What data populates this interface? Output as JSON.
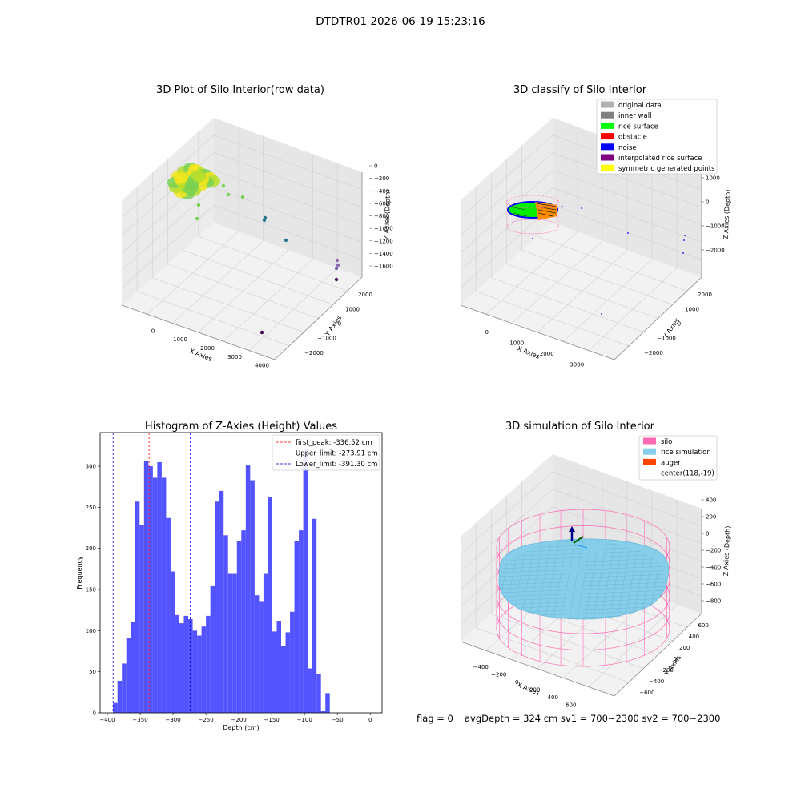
{
  "suptitle": "DTDTR01 2026-06-19 15:23:16",
  "footer": {
    "flag": "flag = 0",
    "avg": "avgDepth = 324 cm  sv1 = 700~2300  sv2 = 700~2300"
  },
  "colors": {
    "hist_bar": "#5050ff",
    "first_peak": "#ff0000",
    "limit": "#0000cc",
    "silo": "#ff69b4",
    "rice": "#87ceeb",
    "auger": "#ff4500",
    "raw_a": "#f2e51c",
    "raw_b": "#7ad151",
    "raw_c": "#2a788e",
    "raw_d": "#440154"
  },
  "panel_raw": {
    "title": "3D Plot of Silo Interior(row data)",
    "xlabel": "X Axies",
    "ylabel": "Y Axies",
    "zlabel": "Z Axies (Depth)",
    "x_ticks": [
      "0",
      "1000",
      "2000",
      "3000",
      "4000"
    ],
    "y_ticks": [
      "2000",
      "1000",
      "0",
      "−1000",
      "−2000"
    ],
    "z_ticks": [
      "0",
      "−200",
      "−400",
      "−600",
      "−800",
      "−1000",
      "−1200",
      "−1400",
      "−1600"
    ]
  },
  "panel_classify": {
    "title": "3D classify of Silo Interior",
    "xlabel": "X Axies",
    "ylabel": "Y Axies",
    "zlabel": "Z Axies (Depth)",
    "x_ticks": [
      "0",
      "1000",
      "2000",
      "3000"
    ],
    "y_ticks": [
      "2000",
      "1000",
      "0",
      "−1000",
      "−2000"
    ],
    "z_ticks": [
      "1000",
      "0",
      "−1000",
      "−2000"
    ],
    "legend": [
      {
        "label": "original data",
        "color": "#b0b0b0"
      },
      {
        "label": "inner wall",
        "color": "#808080"
      },
      {
        "label": "rice surface",
        "color": "#00ff00"
      },
      {
        "label": "obstacle",
        "color": "#ff0000"
      },
      {
        "label": "noise",
        "color": "#0000ff"
      },
      {
        "label": "interpolated rice surface",
        "color": "#800080"
      },
      {
        "label": "symmetric generated points",
        "color": "#ffff00"
      }
    ]
  },
  "panel_sim": {
    "title": "3D simulation of Silo Interior",
    "xlabel": "X Axies",
    "ylabel": "Y Axies",
    "zlabel": "Z Axies (Depth)",
    "x_ticks": [
      "−400",
      "−200",
      "0",
      "200",
      "400",
      "600"
    ],
    "y_ticks": [
      "600",
      "400",
      "200",
      "0",
      "−200",
      "−400",
      "−600"
    ],
    "z_ticks": [
      "400",
      "200",
      "0",
      "−200",
      "−400",
      "−600",
      "−800"
    ],
    "legend": [
      {
        "label": "silo",
        "color": "#ff69b4"
      },
      {
        "label": "rice simulation",
        "color": "#87ceeb"
      },
      {
        "label": "auger",
        "color": "#ff4500"
      },
      {
        "label": "center(118,-19)",
        "color": ""
      }
    ]
  },
  "chart_data": {
    "type": "bar",
    "title": "Histogram of Z-Axies (Height) Values",
    "xlabel": "Depth (cm)",
    "ylabel": "Frequency",
    "xlim": [
      -411,
      18
    ],
    "ylim": [
      0,
      341
    ],
    "x_ticks": [
      -400,
      -350,
      -300,
      -250,
      -200,
      -150,
      -100,
      -50,
      0
    ],
    "x_tick_labels": [
      "−400",
      "−350",
      "−300",
      "−250",
      "−200",
      "−150",
      "−100",
      "−50",
      "0"
    ],
    "y_ticks": [
      0,
      50,
      100,
      150,
      200,
      250,
      300
    ],
    "bin_start": -391.3,
    "bin_width": 6.73,
    "values": [
      12,
      39,
      60,
      91,
      111,
      257,
      228,
      306,
      300,
      286,
      305,
      286,
      237,
      172,
      119,
      109,
      118,
      114,
      100,
      94,
      105,
      118,
      155,
      257,
      270,
      216,
      170,
      170,
      209,
      222,
      301,
      283,
      143,
      136,
      170,
      263,
      99,
      112,
      81,
      98,
      123,
      209,
      222,
      321,
      54,
      236,
      47,
      2,
      24
    ],
    "vlines": [
      {
        "label": "first_peak: -336.52 cm",
        "x": -336.52,
        "style": "red-dashed"
      },
      {
        "label": "Upper_limit: -273.91 cm",
        "x": -273.91,
        "style": "blue-dashed"
      },
      {
        "label": "Lower_limit: -391.30 cm",
        "x": -391.3,
        "style": "blue-dashed"
      }
    ]
  }
}
